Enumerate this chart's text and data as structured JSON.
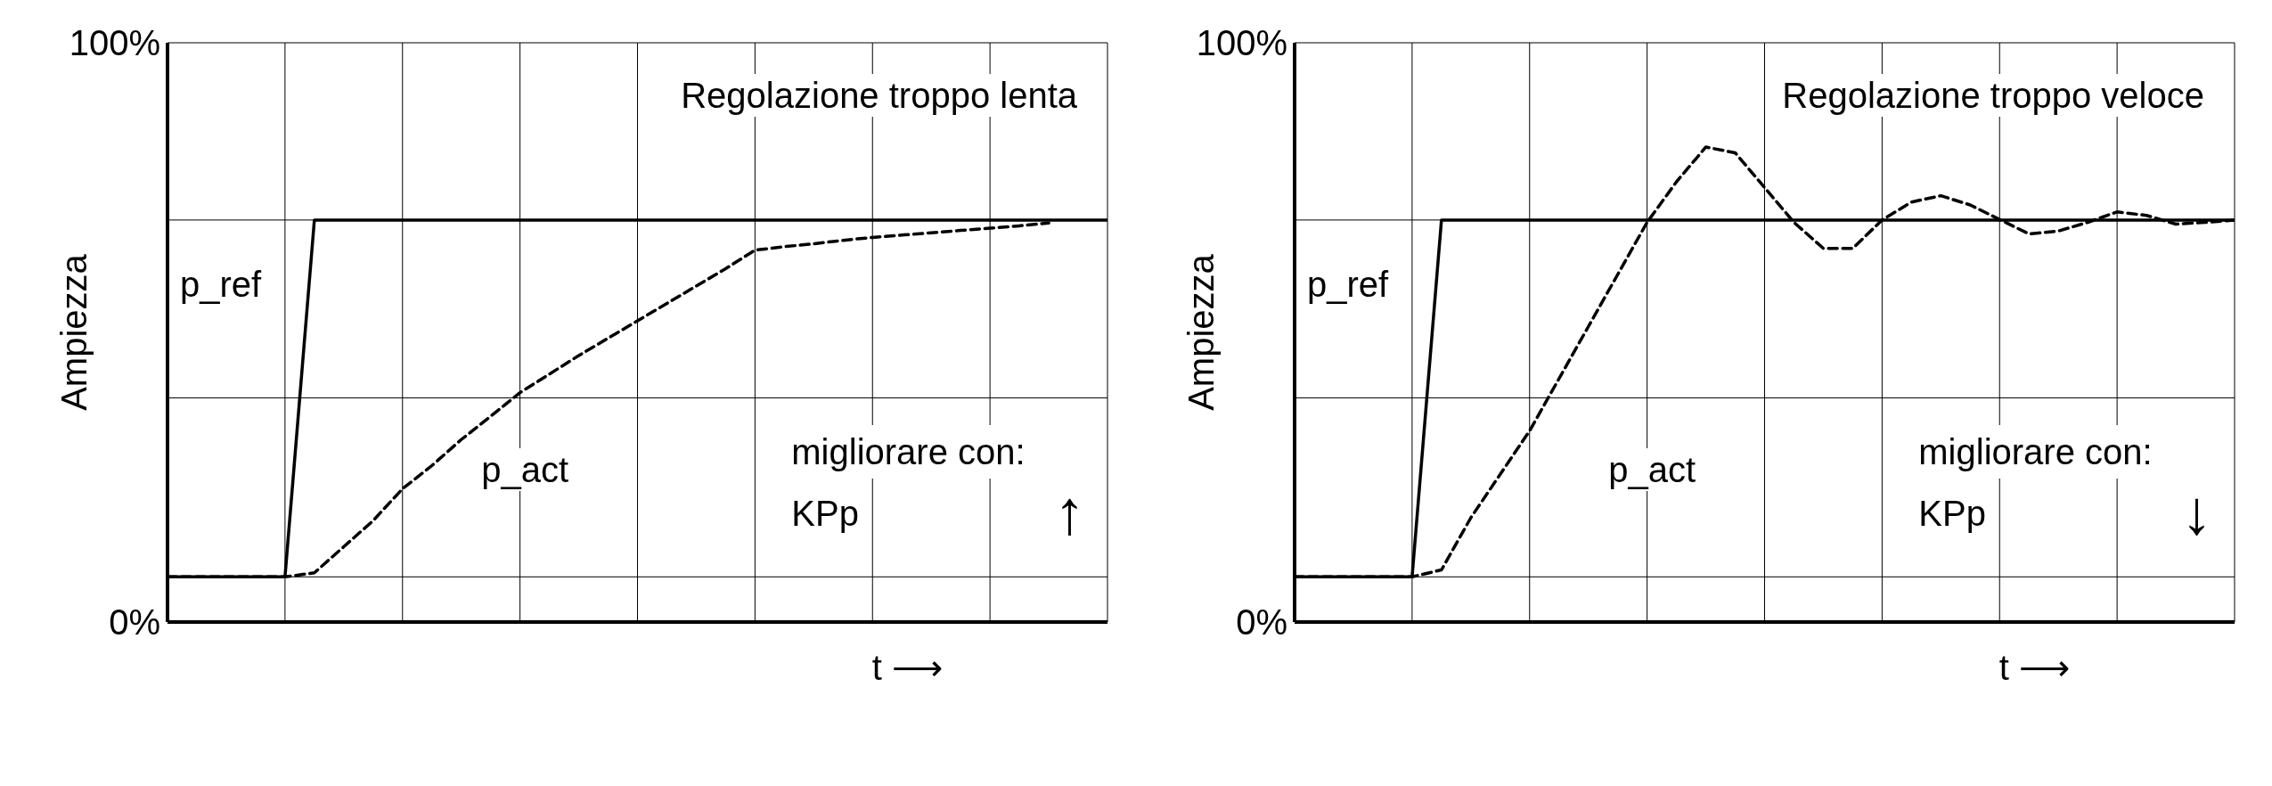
{
  "chart_data": [
    {
      "type": "line",
      "title": "Regolazione troppo lenta",
      "xlabel": "t ⟶",
      "ylabel": "Ampiezza",
      "categories": [
        null,
        null,
        null,
        null,
        null,
        null,
        null,
        null,
        null,
        null,
        null,
        null,
        null,
        null,
        null,
        null,
        null,
        null,
        null,
        null,
        null,
        null,
        null,
        null,
        null,
        null,
        null,
        null,
        null,
        null,
        null,
        null,
        null
      ],
      "ylim": [
        0,
        100
      ],
      "yticks": [
        {
          "value": 0,
          "label": "0%"
        },
        {
          "value": 7.8,
          "label": null
        },
        {
          "value": 38.7,
          "label": null
        },
        {
          "value": 69.4,
          "label": null
        },
        {
          "value": 100,
          "label": "100%"
        }
      ],
      "grid": true,
      "legend": false,
      "marker": "none",
      "series": [
        {
          "color": "#000000",
          "line_style": "solid",
          "values": [
            7.8,
            7.8,
            7.8,
            7.8,
            7.8,
            69.4,
            69.4,
            69.4,
            69.4,
            69.4,
            69.4,
            69.4,
            69.4,
            69.4,
            69.4,
            69.4,
            69.4,
            69.4,
            69.4,
            69.4,
            69.4,
            69.4,
            69.4,
            69.4,
            69.4,
            69.4,
            69.4,
            69.4,
            69.4,
            69.4,
            69.4,
            69.4,
            69.4
          ]
        },
        {
          "color": "#000000",
          "line_style": "dashed",
          "values": [
            7.8,
            7.8,
            7.8,
            7.8,
            7.8,
            8.5,
            13,
            17.5,
            23,
            27,
            31.5,
            35.5,
            39.6,
            42.8,
            46,
            49,
            52,
            55,
            58,
            61,
            64.2,
            64.8,
            65.3,
            65.9,
            66.4,
            66.8,
            67.2,
            67.6,
            68,
            68.4,
            68.9,
            null,
            null
          ]
        }
      ],
      "annotations": [
        "p_ref",
        "p_act",
        "migliorare con:",
        "KPp",
        "↑"
      ]
    },
    {
      "type": "line",
      "title": "Regolazione troppo veloce",
      "xlabel": "t ⟶",
      "ylabel": "Ampiezza",
      "categories": [
        null,
        null,
        null,
        null,
        null,
        null,
        null,
        null,
        null,
        null,
        null,
        null,
        null,
        null,
        null,
        null,
        null,
        null,
        null,
        null,
        null,
        null,
        null,
        null,
        null,
        null,
        null,
        null,
        null,
        null,
        null,
        null,
        null
      ],
      "ylim": [
        0,
        100
      ],
      "yticks": [
        {
          "value": 0,
          "label": "0%"
        },
        {
          "value": 7.8,
          "label": null
        },
        {
          "value": 38.7,
          "label": null
        },
        {
          "value": 69.4,
          "label": null
        },
        {
          "value": 100,
          "label": "100%"
        }
      ],
      "grid": true,
      "legend": false,
      "marker": "none",
      "series": [
        {
          "color": "#000000",
          "line_style": "solid",
          "values": [
            7.8,
            7.8,
            7.8,
            7.8,
            7.8,
            69.4,
            69.4,
            69.4,
            69.4,
            69.4,
            69.4,
            69.4,
            69.4,
            69.4,
            69.4,
            69.4,
            69.4,
            69.4,
            69.4,
            69.4,
            69.4,
            69.4,
            69.4,
            69.4,
            69.4,
            69.4,
            69.4,
            69.4,
            69.4,
            69.4,
            69.4,
            69.4,
            69.4
          ]
        },
        {
          "color": "#000000",
          "line_style": "dashed",
          "values": [
            7.8,
            7.8,
            7.8,
            7.8,
            7.8,
            9,
            18,
            25.5,
            33,
            42,
            51,
            60,
            69,
            76,
            82,
            81,
            75,
            69,
            64.5,
            64.5,
            69.4,
            72.5,
            73.6,
            72,
            69.5,
            67,
            67.5,
            69,
            70.8,
            70.2,
            68.7,
            69,
            69.4
          ]
        }
      ],
      "annotations": [
        "p_ref",
        "p_act",
        "migliorare con:",
        "KPp",
        "↓"
      ]
    }
  ]
}
